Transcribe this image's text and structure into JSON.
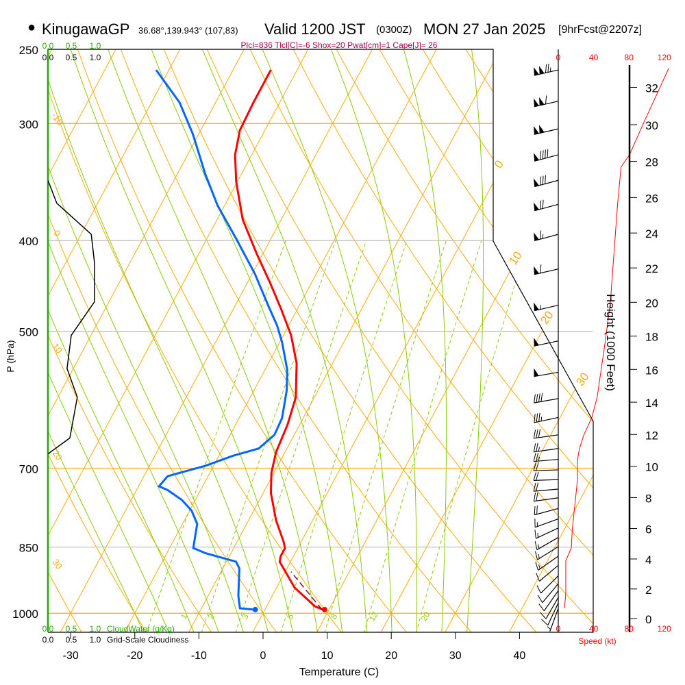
{
  "header": {
    "bullet": "●",
    "station": "KinugawaGP",
    "coords": "36.68°,139.943° (107,83)",
    "valid": "Valid 1200 JST",
    "utc": "(0300Z)",
    "date": "MON 27 Jan 2025",
    "forecast": "[9hrFcst@2207z]"
  },
  "stats": "Plcl=836 Tlcl[C]=-6 Shox=20 Pwat[cm]=1 Cape[J]= 26",
  "colors": {
    "temperature": "#ff0000",
    "dewpoint": "#0066ff",
    "parcel": "#8b0040",
    "isotherm": "#ffaa00",
    "moist": "#88cc00",
    "cloudwater": "#22aa00",
    "stats": "#a0004a",
    "speed": "#ff0000"
  },
  "chart_data": {
    "type": "skew-t",
    "title": "KinugawaGP Valid 1200 JST (0300Z) MON 27 Jan 2025",
    "xlabel": "Temperature (C)",
    "ylabel": "P (hPa)",
    "right_label": "Height (1000 Feet)",
    "speed_label": "Speed (kt)",
    "cloudwater_label": "CloudWater (g/Kg)",
    "cloudiness_label": "Grid-Scale Cloudiness",
    "pressure_ticks": [
      "250",
      "300",
      "400",
      "500",
      "700",
      "850",
      "1000"
    ],
    "temperature_ticks": [
      "-30",
      "-20",
      "-10",
      "0",
      "10",
      "20",
      "30",
      "40"
    ],
    "height_ticks_kft": [
      "0",
      "2",
      "4",
      "6",
      "8",
      "10",
      "12",
      "14",
      "16",
      "18",
      "20",
      "22",
      "24",
      "26",
      "28",
      "30",
      "32"
    ],
    "speed_ticks": [
      "0",
      "40",
      "80",
      "120"
    ],
    "fraction_ticks": [
      "0.0",
      "0.5",
      "1.0"
    ],
    "isotherm_labels_right": [
      "0",
      "10",
      "20",
      "30"
    ],
    "adiabat_labels_left": [
      "-10",
      "0",
      "10",
      "20",
      "30"
    ],
    "mixing_ratio_labels": [
      "1",
      "2",
      "3",
      "5",
      "8",
      "12",
      "20"
    ],
    "mixing_ratio_gkg": [
      1,
      2,
      3,
      5,
      8,
      12,
      20
    ],
    "moist_adiabats_c": [
      -20,
      -16,
      -12,
      -8,
      -4,
      0,
      4,
      8,
      12,
      16,
      20,
      24,
      28,
      32
    ],
    "dry_adiabats_c": [
      -30,
      -20,
      -10,
      0,
      10,
      20,
      30,
      40,
      50,
      60,
      70,
      80,
      90,
      100,
      110,
      120,
      130,
      140,
      150
    ],
    "isotherms_c": [
      -110,
      -100,
      -90,
      -80,
      -70,
      -60,
      -50,
      -40,
      -30,
      -20,
      -10,
      0,
      10,
      20,
      30,
      40
    ],
    "surface": {
      "p": 991,
      "t": 9.3,
      "td": -1.5
    },
    "temperature": [
      {
        "p": 991,
        "t": 9.0
      },
      {
        "p": 983,
        "t": 7.5
      },
      {
        "p": 939,
        "t": 2.8
      },
      {
        "p": 881,
        "t": -1.7
      },
      {
        "p": 869,
        "t": -2.0
      },
      {
        "p": 852,
        "t": -2.0
      },
      {
        "p": 838,
        "t": -2.8
      },
      {
        "p": 796,
        "t": -5.7
      },
      {
        "p": 744,
        "t": -8.8
      },
      {
        "p": 708,
        "t": -10.4
      },
      {
        "p": 673,
        "t": -11.4
      },
      {
        "p": 629,
        "t": -11.9
      },
      {
        "p": 588,
        "t": -12.9
      },
      {
        "p": 541,
        "t": -15.6
      },
      {
        "p": 505,
        "t": -18.8
      },
      {
        "p": 473,
        "t": -22.6
      },
      {
        "p": 445,
        "t": -26.3
      },
      {
        "p": 413,
        "t": -31.0
      },
      {
        "p": 380,
        "t": -36.0
      },
      {
        "p": 346,
        "t": -40.2
      },
      {
        "p": 324,
        "t": -42.6
      },
      {
        "p": 305,
        "t": -43.9
      },
      {
        "p": 285,
        "t": -44.1
      },
      {
        "p": 263,
        "t": -44.1
      }
    ],
    "dewpoint": [
      {
        "p": 991,
        "t": -1.8
      },
      {
        "p": 988,
        "t": -4.0
      },
      {
        "p": 958,
        "t": -5.3
      },
      {
        "p": 896,
        "t": -7.4
      },
      {
        "p": 881,
        "t": -8.5
      },
      {
        "p": 863,
        "t": -13.9
      },
      {
        "p": 852,
        "t": -16.3
      },
      {
        "p": 824,
        "t": -17.1
      },
      {
        "p": 803,
        "t": -17.7
      },
      {
        "p": 777,
        "t": -19.7
      },
      {
        "p": 757,
        "t": -22.1
      },
      {
        "p": 739,
        "t": -25.1
      },
      {
        "p": 732,
        "t": -26.8
      },
      {
        "p": 714,
        "t": -26.3
      },
      {
        "p": 696,
        "t": -21.3
      },
      {
        "p": 679,
        "t": -17.8
      },
      {
        "p": 667,
        "t": -14.4
      },
      {
        "p": 645,
        "t": -13.1
      },
      {
        "p": 619,
        "t": -13.3
      },
      {
        "p": 578,
        "t": -14.9
      },
      {
        "p": 550,
        "t": -16.5
      },
      {
        "p": 514,
        "t": -19.6
      },
      {
        "p": 493,
        "t": -21.8
      },
      {
        "p": 469,
        "t": -24.9
      },
      {
        "p": 434,
        "t": -29.6
      },
      {
        "p": 399,
        "t": -35.3
      },
      {
        "p": 367,
        "t": -41.1
      },
      {
        "p": 340,
        "t": -45.6
      },
      {
        "p": 308,
        "t": -50.9
      },
      {
        "p": 285,
        "t": -55.6
      },
      {
        "p": 263,
        "t": -62.0
      }
    ],
    "parcel": [
      {
        "p": 991,
        "t": 8.9
      },
      {
        "p": 903,
        "t": 0.9
      }
    ],
    "wind_speed_profile": [
      {
        "p": 988,
        "kt": 7
      },
      {
        "p": 952,
        "kt": 8.5
      },
      {
        "p": 879,
        "kt": 8.5
      },
      {
        "p": 852,
        "kt": 14.7
      },
      {
        "p": 811,
        "kt": 16
      },
      {
        "p": 757,
        "kt": 19.4
      },
      {
        "p": 720,
        "kt": 21.7
      },
      {
        "p": 686,
        "kt": 21.7
      },
      {
        "p": 667,
        "kt": 24
      },
      {
        "p": 645,
        "kt": 29
      },
      {
        "p": 618,
        "kt": 38
      },
      {
        "p": 588,
        "kt": 44
      },
      {
        "p": 514,
        "kt": 53
      },
      {
        "p": 465,
        "kt": 59
      },
      {
        "p": 413,
        "kt": 63
      },
      {
        "p": 367,
        "kt": 67
      },
      {
        "p": 334,
        "kt": 71
      },
      {
        "p": 324,
        "kt": 80.6
      },
      {
        "p": 299,
        "kt": 97
      },
      {
        "p": 262,
        "kt": 125
      }
    ],
    "wind_barbs": [
      {
        "p": 263,
        "dir": 257,
        "kt": 125
      },
      {
        "p": 284,
        "dir": 257,
        "kt": 110
      },
      {
        "p": 304,
        "dir": 257,
        "kt": 100
      },
      {
        "p": 324,
        "dir": 255,
        "kt": 90
      },
      {
        "p": 345,
        "dir": 255,
        "kt": 80
      },
      {
        "p": 366,
        "dir": 255,
        "kt": 72
      },
      {
        "p": 394,
        "dir": 255,
        "kt": 65
      },
      {
        "p": 429,
        "dir": 257,
        "kt": 60
      },
      {
        "p": 469,
        "dir": 257,
        "kt": 55
      },
      {
        "p": 512,
        "dir": 258,
        "kt": 50
      },
      {
        "p": 553,
        "dir": 260,
        "kt": 50
      },
      {
        "p": 590,
        "dir": 260,
        "kt": 40
      },
      {
        "p": 618,
        "dir": 258,
        "kt": 35
      },
      {
        "p": 645,
        "dir": 262,
        "kt": 30
      },
      {
        "p": 667,
        "dir": 262,
        "kt": 25
      },
      {
        "p": 685,
        "dir": 265,
        "kt": 25
      },
      {
        "p": 703,
        "dir": 268,
        "kt": 20
      },
      {
        "p": 720,
        "dir": 268,
        "kt": 20
      },
      {
        "p": 737,
        "dir": 265,
        "kt": 20
      },
      {
        "p": 753,
        "dir": 262,
        "kt": 20
      },
      {
        "p": 773,
        "dir": 255,
        "kt": 20
      },
      {
        "p": 793,
        "dir": 250,
        "kt": 15
      },
      {
        "p": 811,
        "dir": 245,
        "kt": 15
      },
      {
        "p": 830,
        "dir": 240,
        "kt": 15
      },
      {
        "p": 849,
        "dir": 238,
        "kt": 15
      },
      {
        "p": 869,
        "dir": 235,
        "kt": 15
      },
      {
        "p": 889,
        "dir": 230,
        "kt": 10
      },
      {
        "p": 912,
        "dir": 225,
        "kt": 10
      },
      {
        "p": 930,
        "dir": 220,
        "kt": 10
      },
      {
        "p": 946,
        "dir": 215,
        "kt": 10
      },
      {
        "p": 962,
        "dir": 210,
        "kt": 10
      },
      {
        "p": 975,
        "dir": 205,
        "kt": 10
      },
      {
        "p": 988,
        "dir": 200,
        "kt": 5
      }
    ],
    "cloudiness": [
      {
        "p": 345,
        "v": 0
      },
      {
        "p": 365,
        "v": 0.19
      },
      {
        "p": 394,
        "v": 0.93
      },
      {
        "p": 423,
        "v": 1.0
      },
      {
        "p": 465,
        "v": 1.0
      },
      {
        "p": 505,
        "v": 0.5
      },
      {
        "p": 548,
        "v": 0.41
      },
      {
        "p": 588,
        "v": 0.63
      },
      {
        "p": 650,
        "v": 0.47
      },
      {
        "p": 676,
        "v": 0
      }
    ],
    "cloud_water": [
      {
        "p": 250,
        "v": 0
      },
      {
        "p": 1050,
        "v": 0
      }
    ]
  }
}
